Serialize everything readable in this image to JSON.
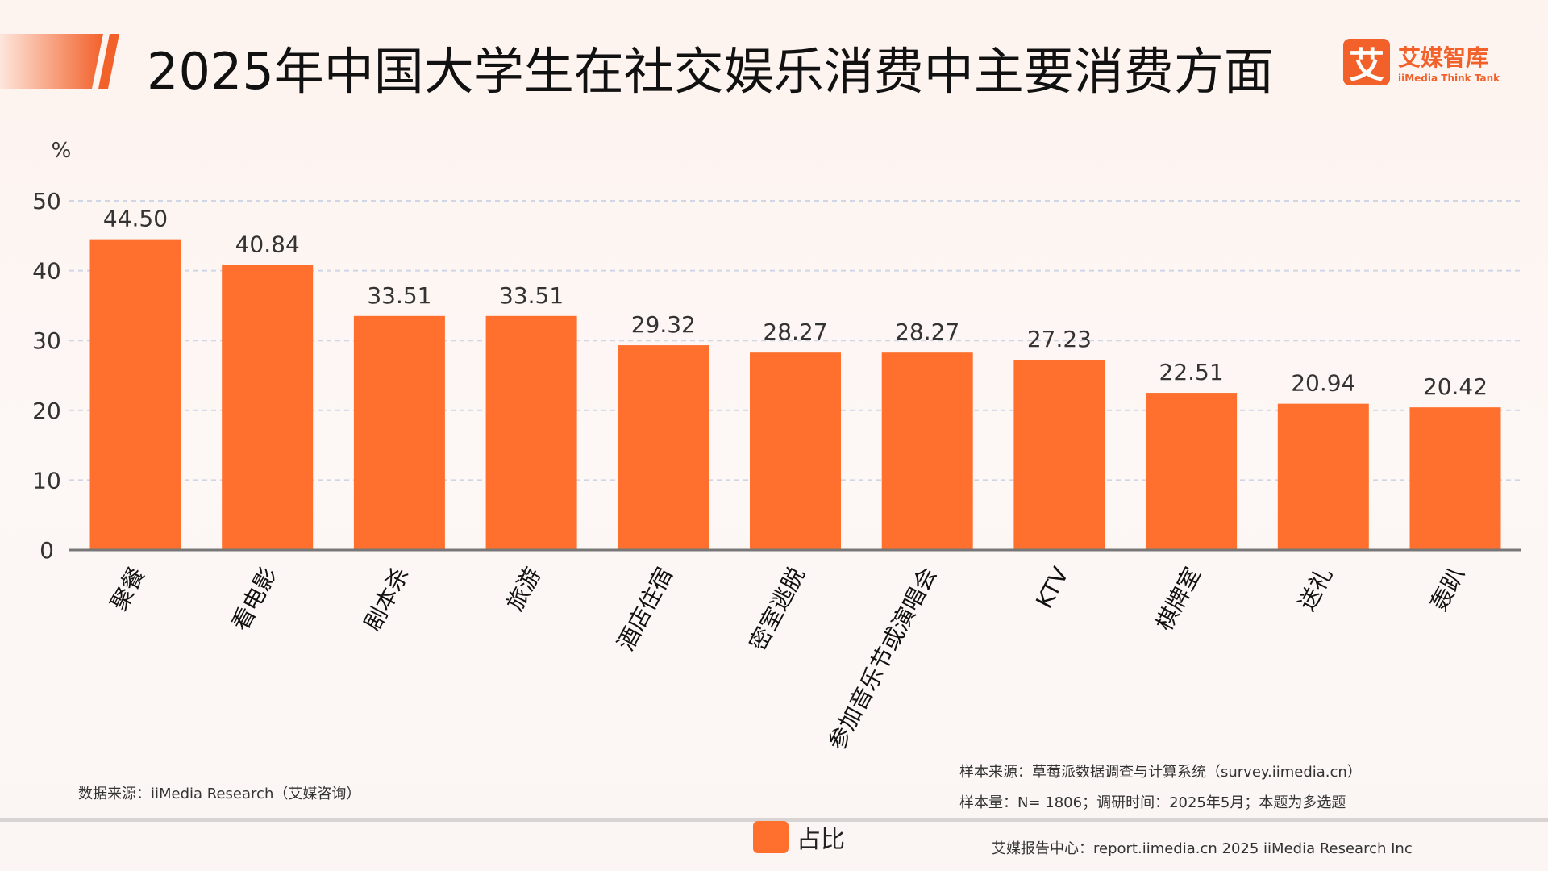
{
  "title": "2025年中国大学生在社交娱乐消费中主要消费方面",
  "logo": {
    "mark": "艾",
    "name_cn": "艾媒智库",
    "name_en": "iiMedia Think Tank"
  },
  "chart_data": {
    "type": "bar",
    "title": "2025年中国大学生在社交娱乐消费中主要消费方面",
    "ylabel": "%",
    "ylim": [
      0,
      50
    ],
    "yticks": [
      0,
      10,
      20,
      30,
      40,
      50
    ],
    "grid": true,
    "legend_position": "bottom",
    "categories": [
      "聚餐",
      "看电影",
      "剧本杀",
      "旅游",
      "酒店住宿",
      "密室逃脱",
      "参加音乐节或演唱会",
      "KTV",
      "棋牌室",
      "送礼",
      "轰趴"
    ],
    "series": [
      {
        "name": "占比",
        "values": [
          44.5,
          40.84,
          33.51,
          33.51,
          29.32,
          28.27,
          28.27,
          27.23,
          22.51,
          20.94,
          20.42
        ],
        "color": "#ff6f2d"
      }
    ]
  },
  "footer": {
    "data_source": "数据来源：iiMedia Research（艾媒咨询）",
    "sample_source": "样本来源：草莓派数据调查与计算系统（survey.iimedia.cn）",
    "sample_size": "样本量：N= 1806；调研时间：2025年5月；本题为多选题",
    "report_center": "艾媒报告中心：report.iimedia.cn   2025 iiMedia Research Inc"
  }
}
